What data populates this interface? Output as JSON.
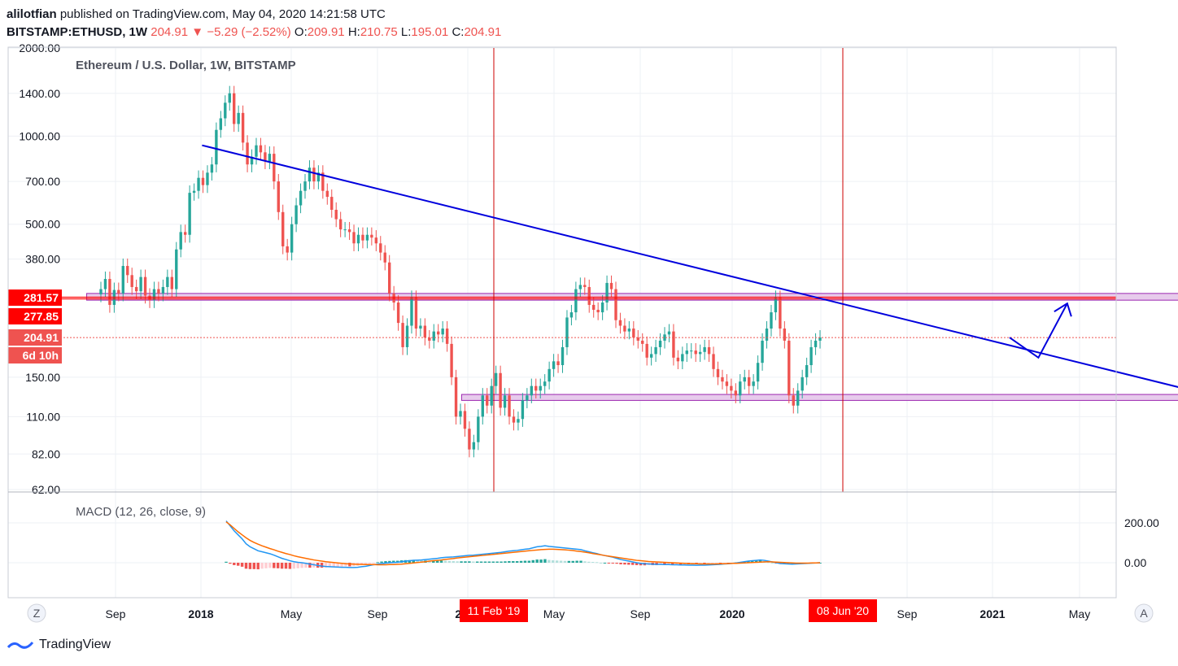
{
  "header": {
    "publisher": "alilotfian",
    "published_text": "published on TradingView.com, May 04, 2020 14:21:58 UTC",
    "symbol": "BITSTAMP:ETHUSD, 1W",
    "last": "204.91",
    "change": "−5.29 (−2.52%)",
    "o_label": "O:",
    "o_value": "209.91",
    "h_label": "H:",
    "h_value": "210.75",
    "l_label": "L:",
    "l_value": "195.01",
    "c_label": "C:",
    "c_value": "204.91"
  },
  "footer": {
    "brand": "TradingView"
  },
  "chart_data": [
    {
      "type": "candlestick",
      "title": "Ethereum / U.S. Dollar, 1W, BITSTAMP",
      "y_scale": "log",
      "ylim": [
        62,
        2000
      ],
      "y_ticks": [
        "2000.00",
        "1400.00",
        "1000.00",
        "700.00",
        "500.00",
        "380.00",
        "150.00",
        "110.00",
        "82.00",
        "62.00"
      ],
      "x_ticks": [
        "Sep",
        "2018",
        "May",
        "Sep",
        "2019",
        "May",
        "Sep",
        "2020",
        "May",
        "Sep",
        "2021",
        "May"
      ],
      "price_labels": [
        {
          "text": "281.57",
          "value": 281.57,
          "color": "#ff0000"
        },
        {
          "text": "277.85",
          "value": 277.85,
          "color": "#ff0000"
        },
        {
          "text": "204.91",
          "value": 204.91,
          "color": "#ef5350"
        },
        {
          "text": "6d 10h",
          "color": "#ef5350"
        }
      ],
      "date_labels": [
        "11 Feb '19",
        "08 Jun '20"
      ],
      "vertical_lines": [
        "11 Feb '19",
        "08 Jun '20"
      ],
      "horizontal_lines": [
        281.57,
        277.85
      ],
      "last_price_line": 204.91,
      "zones": [
        {
          "from": "2017-08",
          "to": "2021-01",
          "low": 275,
          "high": 290
        },
        {
          "from": "2018-09",
          "to": "2020-12",
          "low": 125,
          "high": 131
        }
      ],
      "trendline": {
        "start": {
          "date": "2017-12",
          "value": 930
        },
        "end": {
          "date": "2020-12",
          "value": 123
        }
      },
      "projection": [
        {
          "date": "2020-04",
          "value": 205
        },
        {
          "date": "2020-05",
          "value": 175
        },
        {
          "date": "2020-06",
          "value": 268
        }
      ],
      "colors": {
        "up": "#26a69a",
        "down": "#ef5350",
        "trendline": "#0000dd",
        "zone_fill": "#e1bee7",
        "zone_border": "#9c27b0",
        "marker_line": "#cc0000"
      },
      "closes": [
        300,
        325,
        265,
        298,
        290,
        360,
        335,
        305,
        295,
        330,
        285,
        275,
        300,
        290,
        305,
        330,
        300,
        410,
        470,
        460,
        640,
        650,
        720,
        680,
        750,
        800,
        1050,
        1150,
        1300,
        1400,
        1100,
        1200,
        950,
        800,
        850,
        930,
        880,
        820,
        870,
        700,
        550,
        420,
        400,
        500,
        580,
        650,
        700,
        780,
        700,
        750,
        650,
        620,
        560,
        520,
        480,
        480,
        470,
        430,
        460,
        440,
        460,
        450,
        430,
        400,
        370,
        290,
        270,
        230,
        190,
        225,
        280,
        220,
        225,
        205,
        200,
        215,
        210,
        220,
        195,
        150,
        110,
        115,
        100,
        85,
        90,
        110,
        130,
        120,
        140,
        155,
        118,
        130,
        110,
        105,
        108,
        125,
        130,
        140,
        135,
        140,
        145,
        160,
        170,
        165,
        190,
        240,
        250,
        300,
        310,
        305,
        265,
        255,
        250,
        270,
        315,
        300,
        235,
        225,
        215,
        220,
        205,
        200,
        195,
        175,
        180,
        190,
        200,
        210,
        215,
        175,
        170,
        180,
        185,
        185,
        180,
        183,
        190,
        180,
        160,
        150,
        145,
        140,
        135,
        130,
        145,
        150,
        140,
        145,
        168,
        200,
        220,
        250,
        280,
        220,
        200,
        130,
        120,
        135,
        150,
        165,
        190,
        200,
        205
      ]
    },
    {
      "type": "macd",
      "title": "MACD (12, 26, close, 9)",
      "y_ticks": [
        "200.00",
        "0.00"
      ],
      "macd_line": [
        210,
        185,
        160,
        140,
        120,
        95,
        80,
        70,
        60,
        55,
        50,
        45,
        38,
        30,
        22,
        16,
        10,
        5,
        2,
        0,
        -3,
        -7,
        -10,
        -14,
        -17,
        -19,
        -20,
        -21,
        -22,
        -23,
        -23,
        -24,
        -24,
        -23,
        -20,
        -18,
        -14,
        -10,
        -7,
        -4,
        -2,
        0,
        1,
        2,
        5,
        8,
        10,
        12,
        13,
        14,
        16,
        18,
        20,
        22,
        25,
        27,
        28,
        29,
        31,
        33,
        35,
        37,
        38,
        40,
        42,
        44,
        46,
        48,
        50,
        52,
        55,
        58,
        60,
        62,
        65,
        68,
        70,
        75,
        80,
        82,
        85,
        82,
        80,
        78,
        76,
        74,
        72,
        70,
        68,
        66,
        60,
        55,
        50,
        46,
        40,
        36,
        32,
        28,
        22,
        16,
        12,
        8,
        4,
        0,
        -3,
        -5,
        -6,
        -7,
        -8,
        -8,
        -9,
        -9,
        -10,
        -10,
        -11,
        -11,
        -12,
        -12,
        -13,
        -12,
        -12,
        -11,
        -10,
        -9,
        -8,
        -6,
        -5,
        -3,
        -1,
        2,
        5,
        8,
        10,
        12,
        14,
        12,
        8,
        4,
        0,
        -4,
        -5,
        -6,
        -7,
        -6,
        -5,
        -4,
        -3,
        -2,
        -1,
        0
      ],
      "signal_line": [
        205,
        190,
        172,
        155,
        140,
        125,
        112,
        102,
        93,
        85,
        78,
        71,
        65,
        58,
        52,
        46,
        41,
        35,
        30,
        26,
        22,
        18,
        14,
        11,
        8,
        5,
        3,
        1,
        -1,
        -3,
        -5,
        -6,
        -7,
        -8,
        -8,
        -9,
        -9,
        -9,
        -10,
        -10,
        -10,
        -9,
        -9,
        -8,
        -7,
        -5,
        -3,
        -1,
        1,
        3,
        5,
        8,
        10,
        12,
        14,
        17,
        19,
        21,
        24,
        26,
        28,
        30,
        32,
        34,
        36,
        38,
        40,
        42,
        44,
        46,
        48,
        50,
        52,
        54,
        56,
        58,
        60,
        62,
        64,
        66,
        67,
        68,
        68,
        67,
        66,
        65,
        63,
        61,
        58,
        56,
        53,
        50,
        46,
        43,
        40,
        36,
        33,
        30,
        27,
        24,
        21,
        18,
        15,
        12,
        10,
        8,
        6,
        5,
        4,
        3,
        2,
        1,
        0,
        -1,
        -2,
        -3,
        -4,
        -5,
        -5,
        -6,
        -6,
        -6,
        -6,
        -6,
        -5,
        -5,
        -4,
        -3,
        -3,
        -2,
        -1,
        0,
        1,
        2,
        3,
        4,
        5,
        4,
        3,
        2,
        1,
        0,
        -1,
        -2,
        -2,
        -2,
        -2,
        -1,
        -1,
        0
      ]
    }
  ]
}
